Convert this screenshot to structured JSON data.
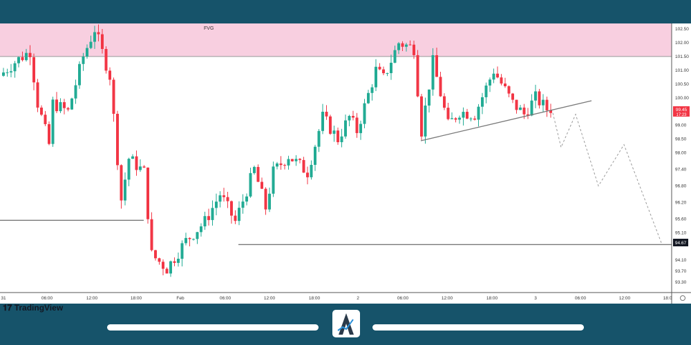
{
  "chart_data": {
    "type": "candlestick",
    "title": "",
    "zone": {
      "label": "FVG",
      "from": 101.5,
      "to": 102.7,
      "color": "#f8cfe0"
    },
    "price_ticks": [
      102.5,
      102.0,
      101.5,
      101.0,
      100.5,
      100.0,
      99.0,
      98.5,
      98.0,
      97.4,
      96.8,
      96.2,
      95.6,
      95.1,
      94.1,
      93.7,
      93.3
    ],
    "price_tick_labels": [
      "102.50",
      "102.00",
      "101.50",
      "101.00",
      "100.50",
      "100.00",
      "99.00",
      "98.50",
      "98.00",
      "97.40",
      "96.80",
      "96.20",
      "95.60",
      "95.10",
      "94.10",
      "93.70",
      "93.30"
    ],
    "time_labels": [
      "31",
      "06:00",
      "12:00",
      "18:00",
      "Feb",
      "06:00",
      "12:00",
      "18:00",
      "2",
      "06:00",
      "12:00",
      "18:00",
      "3",
      "06:00",
      "12:00",
      "18:0"
    ],
    "ylim": [
      92.8,
      102.7
    ],
    "last_price": {
      "price": "99.45",
      "countdown": "17:23",
      "color": "#f23645"
    },
    "support_level": {
      "price": "94.67",
      "value": 94.67
    },
    "left_level": 95.55,
    "approx_close_path": [
      [
        0,
        100.8
      ],
      [
        4,
        101.3
      ],
      [
        8,
        101.7
      ],
      [
        10,
        99.8
      ],
      [
        13,
        98.3
      ],
      [
        14,
        99.8
      ],
      [
        18,
        99.5
      ],
      [
        22,
        101.5
      ],
      [
        25,
        102.5
      ],
      [
        29,
        100.8
      ],
      [
        32,
        96.3
      ],
      [
        34,
        97.8
      ],
      [
        38,
        97.3
      ],
      [
        40,
        94.3
      ],
      [
        44,
        93.8
      ],
      [
        49,
        94.8
      ],
      [
        54,
        95.5
      ],
      [
        58,
        96.5
      ],
      [
        62,
        95.5
      ],
      [
        67,
        97.4
      ],
      [
        70,
        96.0
      ],
      [
        72,
        97.3
      ],
      [
        76,
        97.9
      ],
      [
        81,
        97.3
      ],
      [
        85,
        99.3
      ],
      [
        89,
        98.5
      ],
      [
        92,
        99.3
      ],
      [
        94,
        98.8
      ],
      [
        99,
        101.0
      ],
      [
        101,
        100.7
      ],
      [
        105,
        102.0
      ],
      [
        109,
        101.8
      ],
      [
        111,
        98.8
      ],
      [
        114,
        101.3
      ],
      [
        118,
        99.0
      ],
      [
        121,
        99.5
      ],
      [
        125,
        99.4
      ],
      [
        130,
        101.0
      ],
      [
        135,
        99.8
      ],
      [
        138,
        99.4
      ],
      [
        141,
        100.0
      ],
      [
        145,
        99.45
      ]
    ],
    "trendline": [
      [
        98.45,
        "Feb 2 08:00"
      ],
      [
        99.9,
        "Feb 3 07:00"
      ]
    ],
    "projection": [
      99.45,
      98.2,
      99.4,
      96.8,
      98.3,
      94.67
    ],
    "colors": {
      "up": "#22ab94",
      "down": "#f23645"
    }
  },
  "branding": {
    "watermark": "TradingView"
  }
}
